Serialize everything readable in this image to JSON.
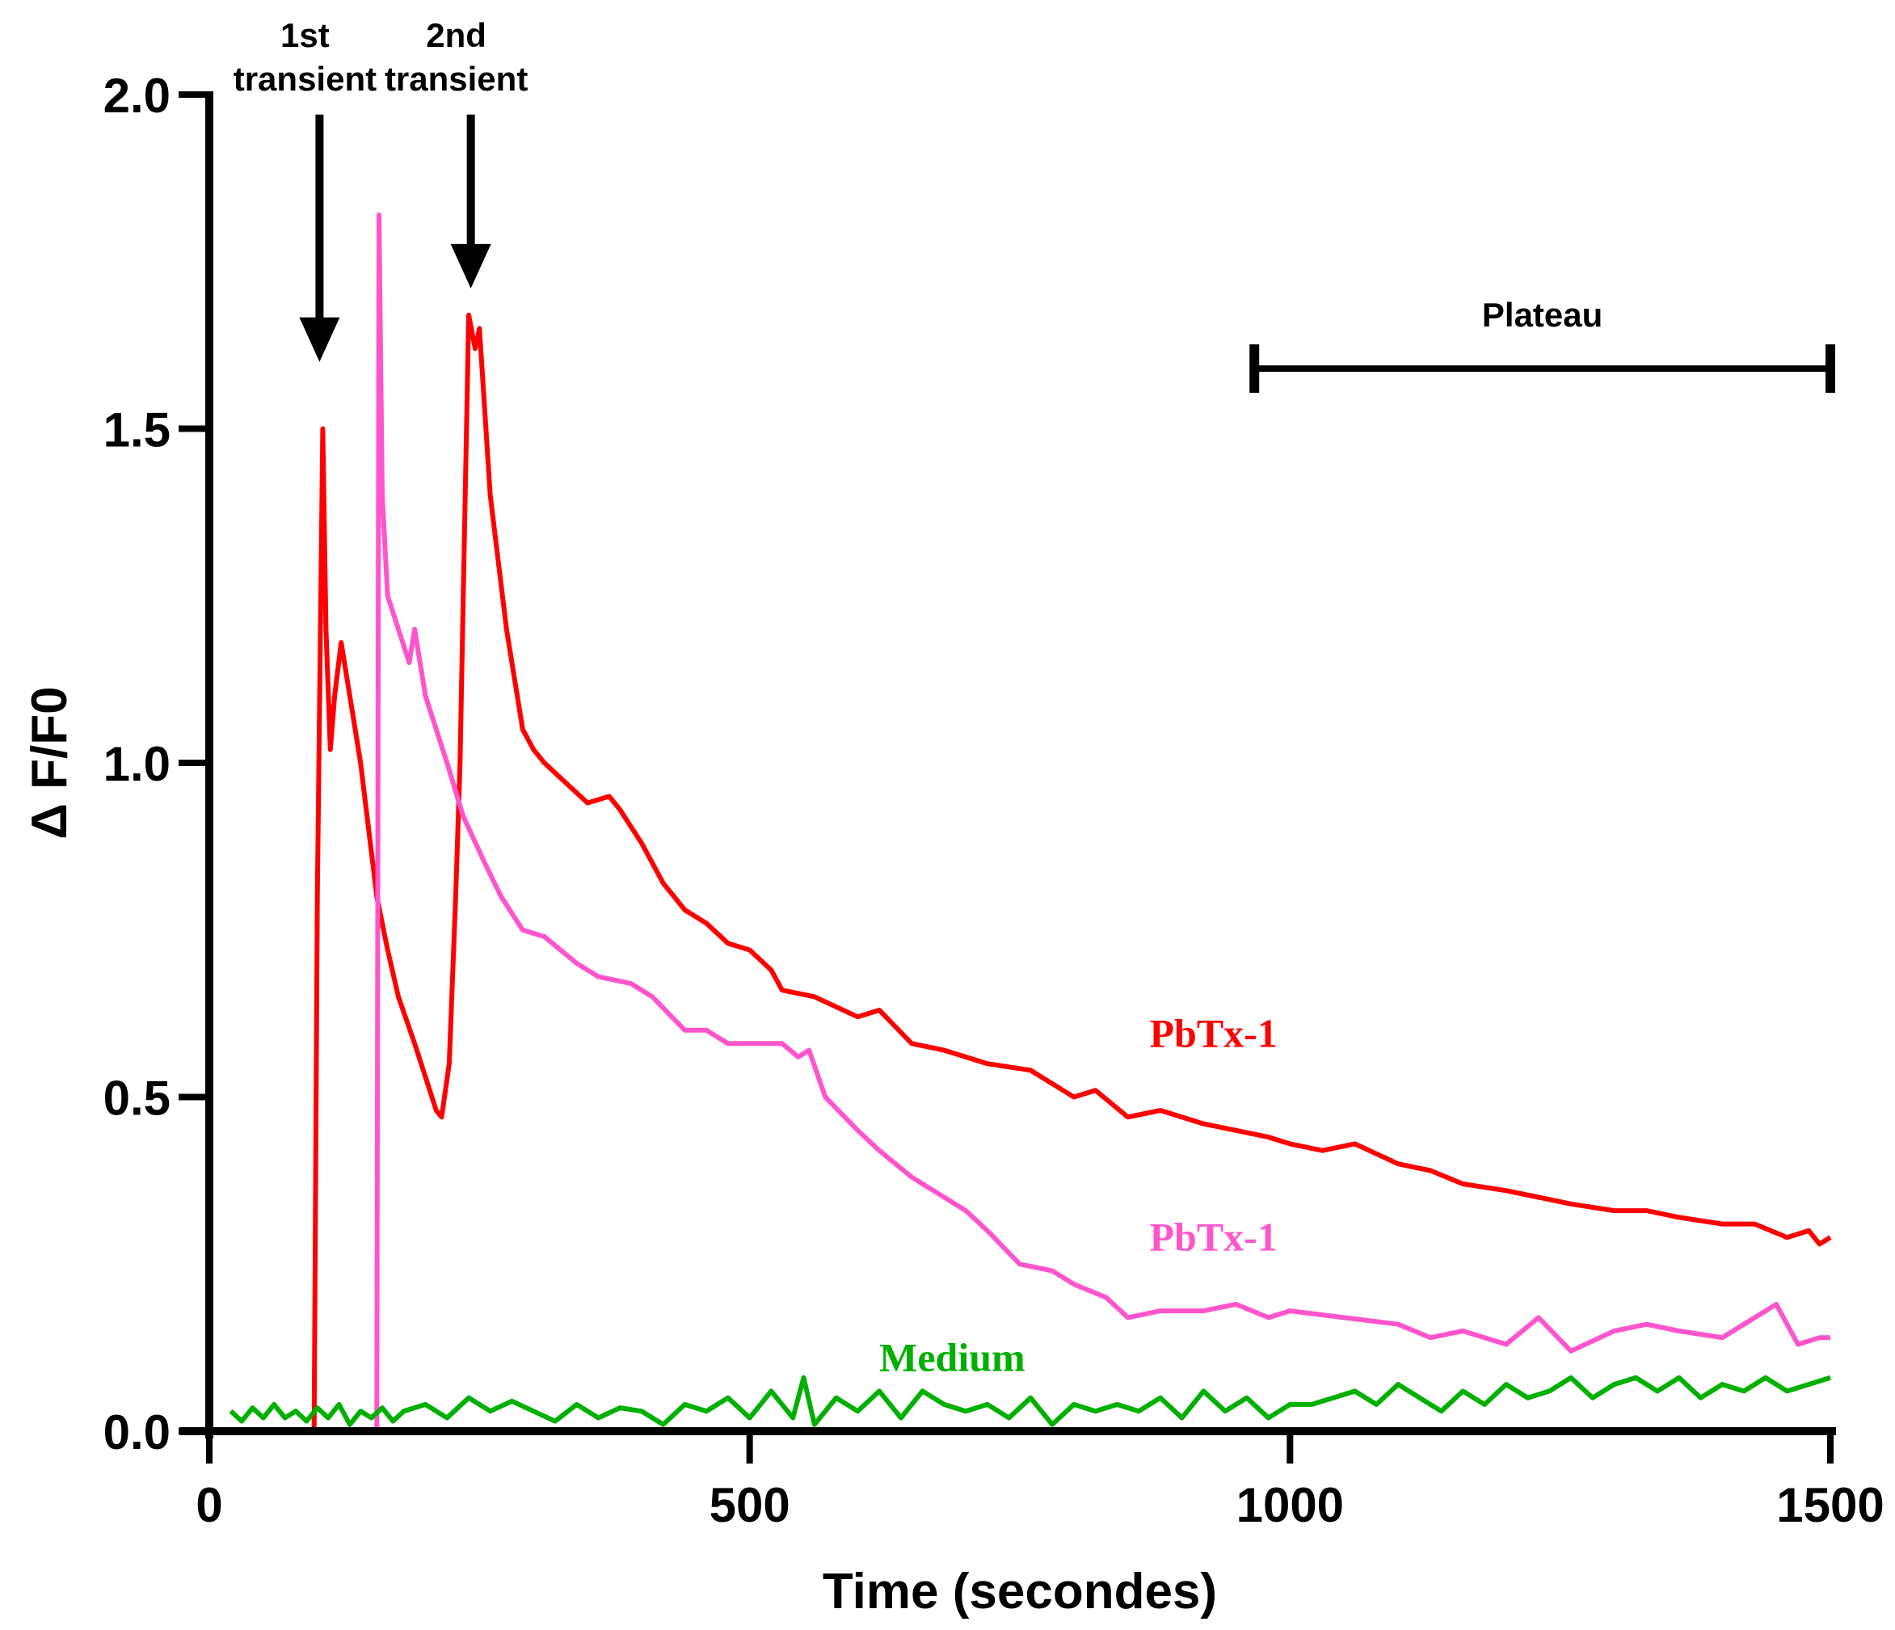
{
  "chart_data": {
    "type": "line",
    "xlabel": "Time (secondes)",
    "ylabel": "Δ F/F0",
    "xlim": [
      0,
      1500
    ],
    "ylim": [
      0,
      2.0
    ],
    "xticks": [
      "0",
      "500",
      "1000",
      "1500"
    ],
    "yticks": [
      "0.0",
      "0.5",
      "1.0",
      "1.5",
      "2.0"
    ],
    "grid": false,
    "series": [
      {
        "name": "PbTx-1",
        "color": "#ff0000",
        "x": [
          97,
          100,
          105,
          108,
          112,
          116,
          122,
          130,
          140,
          155,
          165,
          175,
          190,
          200,
          210,
          215,
          222,
          228,
          232,
          240,
          246,
          250,
          260,
          275,
          290,
          300,
          310,
          330,
          350,
          370,
          380,
          400,
          420,
          440,
          460,
          480,
          500,
          520,
          530,
          560,
          600,
          620,
          650,
          680,
          720,
          760,
          800,
          820,
          850,
          880,
          920,
          950,
          980,
          1000,
          1030,
          1060,
          1100,
          1130,
          1160,
          1200,
          1230,
          1260,
          1300,
          1330,
          1360,
          1400,
          1430,
          1460,
          1480,
          1490,
          1500
        ],
        "y": [
          0,
          0.8,
          1.5,
          1.2,
          1.02,
          1.1,
          1.18,
          1.1,
          1.0,
          0.8,
          0.72,
          0.65,
          0.58,
          0.53,
          0.48,
          0.47,
          0.55,
          0.8,
          1.0,
          1.67,
          1.62,
          1.65,
          1.4,
          1.2,
          1.05,
          1.02,
          1.0,
          0.97,
          0.94,
          0.95,
          0.93,
          0.88,
          0.82,
          0.78,
          0.76,
          0.73,
          0.72,
          0.69,
          0.66,
          0.65,
          0.62,
          0.63,
          0.58,
          0.57,
          0.55,
          0.54,
          0.5,
          0.51,
          0.47,
          0.48,
          0.46,
          0.45,
          0.44,
          0.43,
          0.42,
          0.43,
          0.4,
          0.39,
          0.37,
          0.36,
          0.35,
          0.34,
          0.33,
          0.33,
          0.32,
          0.31,
          0.31,
          0.29,
          0.3,
          0.28,
          0.29
        ]
      },
      {
        "name": "PbTx-1",
        "color": "#ff55cc",
        "x": [
          155,
          157,
          160,
          165,
          175,
          185,
          190,
          200,
          210,
          220,
          235,
          255,
          270,
          290,
          310,
          340,
          360,
          390,
          410,
          440,
          460,
          480,
          510,
          530,
          545,
          555,
          570,
          600,
          620,
          650,
          680,
          700,
          720,
          750,
          780,
          800,
          830,
          850,
          880,
          920,
          950,
          980,
          1000,
          1050,
          1100,
          1130,
          1160,
          1200,
          1230,
          1260,
          1300,
          1330,
          1360,
          1400,
          1430,
          1450,
          1470,
          1490,
          1500
        ],
        "y": [
          0,
          1.82,
          1.4,
          1.25,
          1.2,
          1.15,
          1.2,
          1.1,
          1.05,
          1.0,
          0.92,
          0.85,
          0.8,
          0.75,
          0.74,
          0.7,
          0.68,
          0.67,
          0.65,
          0.6,
          0.6,
          0.58,
          0.58,
          0.58,
          0.56,
          0.57,
          0.5,
          0.45,
          0.42,
          0.38,
          0.35,
          0.33,
          0.3,
          0.25,
          0.24,
          0.22,
          0.2,
          0.17,
          0.18,
          0.18,
          0.19,
          0.17,
          0.18,
          0.17,
          0.16,
          0.14,
          0.15,
          0.13,
          0.17,
          0.12,
          0.15,
          0.16,
          0.15,
          0.14,
          0.17,
          0.19,
          0.13,
          0.14,
          0.14
        ]
      },
      {
        "name": "Medium",
        "color": "#00b000",
        "x": [
          20,
          30,
          40,
          50,
          60,
          70,
          80,
          90,
          100,
          110,
          120,
          130,
          140,
          150,
          160,
          170,
          180,
          200,
          220,
          240,
          260,
          280,
          300,
          320,
          340,
          360,
          380,
          400,
          420,
          440,
          460,
          480,
          500,
          520,
          540,
          550,
          560,
          580,
          600,
          620,
          640,
          660,
          680,
          700,
          720,
          740,
          760,
          780,
          800,
          820,
          840,
          860,
          880,
          900,
          920,
          940,
          960,
          980,
          1000,
          1020,
          1040,
          1060,
          1080,
          1100,
          1120,
          1140,
          1160,
          1180,
          1200,
          1220,
          1240,
          1260,
          1280,
          1300,
          1320,
          1340,
          1360,
          1380,
          1400,
          1420,
          1440,
          1460,
          1480,
          1500
        ],
        "y": [
          0.03,
          0.015,
          0.035,
          0.02,
          0.04,
          0.02,
          0.03,
          0.015,
          0.035,
          0.02,
          0.04,
          0.01,
          0.03,
          0.02,
          0.035,
          0.015,
          0.03,
          0.04,
          0.02,
          0.05,
          0.03,
          0.045,
          0.03,
          0.015,
          0.04,
          0.02,
          0.035,
          0.03,
          0.01,
          0.04,
          0.03,
          0.05,
          0.02,
          0.06,
          0.02,
          0.08,
          0.01,
          0.05,
          0.03,
          0.06,
          0.02,
          0.06,
          0.04,
          0.03,
          0.04,
          0.02,
          0.05,
          0.01,
          0.04,
          0.03,
          0.04,
          0.03,
          0.05,
          0.02,
          0.06,
          0.03,
          0.05,
          0.02,
          0.04,
          0.04,
          0.05,
          0.06,
          0.04,
          0.07,
          0.05,
          0.03,
          0.06,
          0.04,
          0.07,
          0.05,
          0.06,
          0.08,
          0.05,
          0.07,
          0.08,
          0.06,
          0.08,
          0.05,
          0.07,
          0.06,
          0.08,
          0.06,
          0.07,
          0.08
        ]
      }
    ],
    "series_labels": [
      {
        "text": "PbTx-1",
        "color": "#ff0000",
        "x": 870,
        "y": 0.575
      },
      {
        "text": "PbTx-1",
        "color": "#ff55cc",
        "x": 870,
        "y": 0.27
      },
      {
        "text": "Medium",
        "color": "#00b000",
        "x": 620,
        "y": 0.09
      }
    ],
    "annotations": {
      "arrow1": {
        "line1": "1st",
        "line2": "transient",
        "x": 102,
        "tip_y": 1.6
      },
      "arrow2": {
        "line1": "2nd",
        "line2": "transient",
        "x": 242,
        "tip_y": 1.71
      },
      "plateau": {
        "text": "Plateau",
        "x_start": 967,
        "x_end": 1500,
        "y": 1.59
      }
    }
  }
}
